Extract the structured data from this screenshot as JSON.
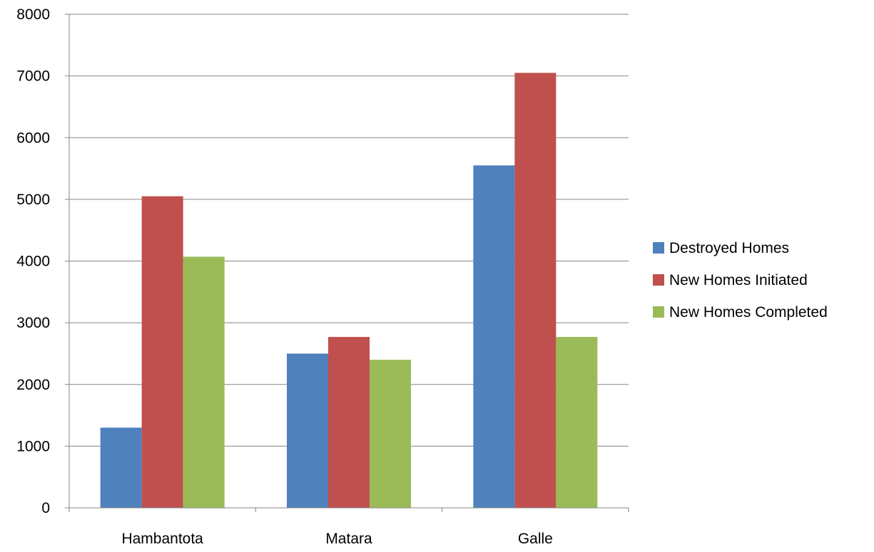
{
  "chart_data": {
    "type": "bar",
    "title": "",
    "xlabel": "",
    "ylabel": "",
    "categories": [
      "Hambantota",
      "Matara",
      "Galle"
    ],
    "series": [
      {
        "name": "Destroyed Homes",
        "color": "#4F81BD",
        "values": [
          1300,
          2500,
          5550
        ]
      },
      {
        "name": "New Homes Initiated",
        "color": "#C0504D",
        "values": [
          5050,
          2770,
          7050
        ]
      },
      {
        "name": "New Homes Completed",
        "color": "#9BBB59",
        "values": [
          4070,
          2400,
          2770
        ]
      }
    ],
    "ylim": [
      0,
      8000
    ],
    "yticks": [
      0,
      1000,
      2000,
      3000,
      4000,
      5000,
      6000,
      7000,
      8000
    ],
    "grid": true,
    "legend_position": "right"
  }
}
